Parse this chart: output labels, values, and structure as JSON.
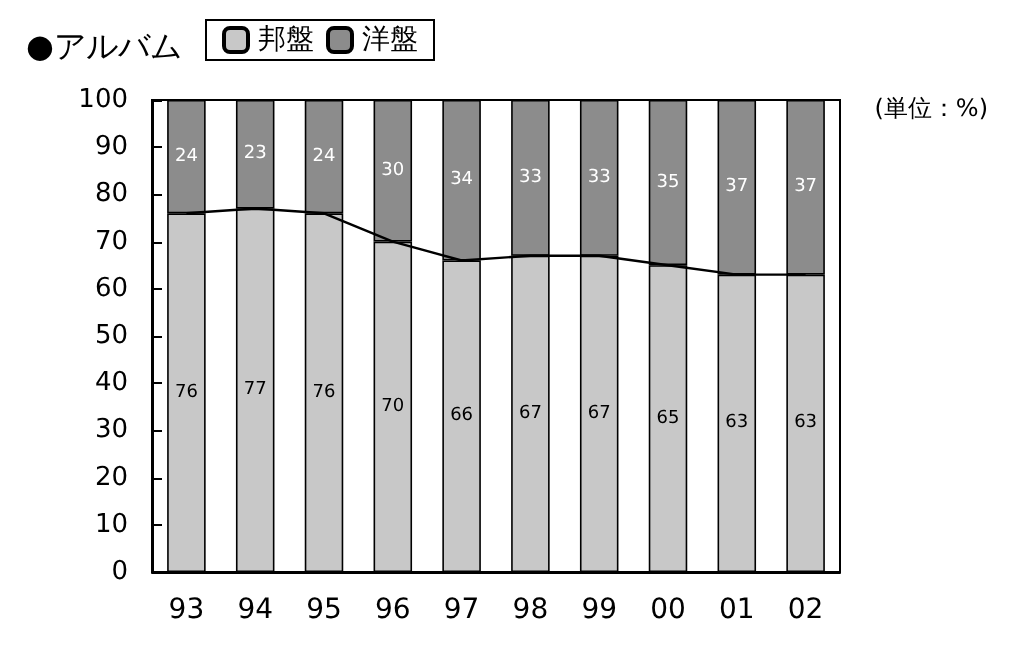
{
  "chart_data": {
    "type": "bar",
    "title": "●アルバム",
    "categories": [
      "93",
      "94",
      "95",
      "96",
      "97",
      "98",
      "99",
      "00",
      "01",
      "02"
    ],
    "series": [
      {
        "name": "邦盤",
        "color": "#c8c8c8",
        "values": [
          76,
          77,
          76,
          70,
          66,
          67,
          67,
          65,
          63,
          63
        ]
      },
      {
        "name": "洋盤",
        "color": "#8c8c8c",
        "values": [
          24,
          23,
          24,
          30,
          34,
          33,
          33,
          35,
          37,
          37
        ]
      },
      {
        "type": "line",
        "color": "#000000",
        "values": [
          76,
          77,
          76,
          70,
          66,
          67,
          67,
          65,
          63,
          63
        ],
        "value_labels": [
          null,
          null,
          null,
          null,
          null,
          null,
          null,
          null,
          null,
          null
        ]
      }
    ],
    "stacked": true,
    "data_labels": true,
    "ylim": [
      0,
      100
    ],
    "yticks": [
      0,
      10,
      20,
      30,
      40,
      50,
      60,
      70,
      80,
      90,
      100
    ],
    "grid": false,
    "legend": "top",
    "marker": "none",
    "annotations": [
      "(単位：%)"
    ]
  }
}
